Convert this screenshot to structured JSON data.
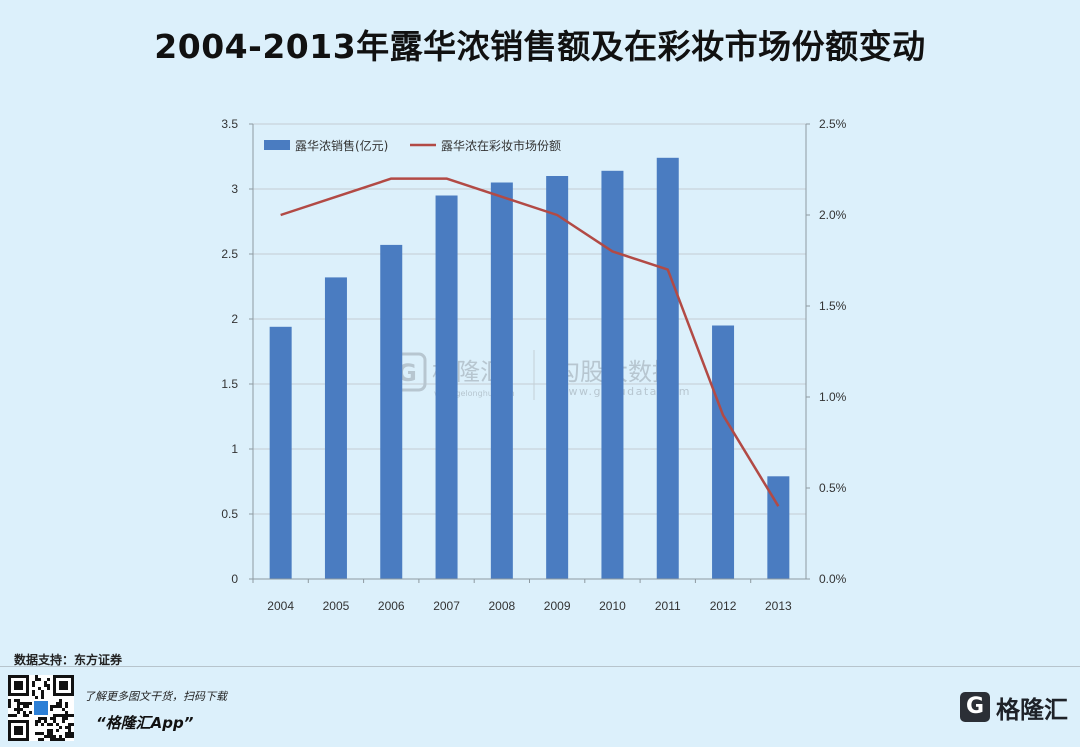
{
  "title": "2004-2013年露华浓销售额及在彩妆市场份额变动",
  "source": "数据支持：东方证券",
  "promo": {
    "line1": "了解更多图文干货，扫码下载",
    "line2": "“格隆汇App”"
  },
  "brand": {
    "logo": "G",
    "name": "格隆汇"
  },
  "watermark": {
    "left_name": "格隆汇",
    "left_url": "www.gelonghui.com",
    "right_name": "勾股大数据",
    "right_url": "www.gogudata.com"
  },
  "chart_data": {
    "type": "bar+line",
    "categories": [
      "2004",
      "2005",
      "2006",
      "2007",
      "2008",
      "2009",
      "2010",
      "2011",
      "2012",
      "2013"
    ],
    "series": [
      {
        "name": "露华浓销售(亿元)",
        "type": "bar",
        "axis": "left",
        "color": "#4a7cc1",
        "values": [
          1.94,
          2.32,
          2.57,
          2.95,
          3.05,
          3.1,
          3.14,
          3.24,
          1.95,
          0.79
        ]
      },
      {
        "name": "露华浓在彩妆市场份额",
        "type": "line",
        "axis": "right",
        "color": "#b24a45",
        "values": [
          2.0,
          2.1,
          2.2,
          2.2,
          2.1,
          2.0,
          1.8,
          1.7,
          0.9,
          0.4
        ]
      }
    ],
    "y_left": {
      "min": 0,
      "max": 3.5,
      "ticks": [
        0,
        0.5,
        1,
        1.5,
        2,
        2.5,
        3,
        3.5
      ],
      "tick_labels": [
        "0",
        "0.5",
        "1",
        "1.5",
        "2",
        "2.5",
        "3",
        "3.5"
      ]
    },
    "y_right": {
      "min": 0,
      "max": 2.5,
      "ticks": [
        0,
        0.5,
        1.0,
        1.5,
        2.0,
        2.5
      ],
      "tick_labels": [
        "0.0%",
        "0.5%",
        "1.0%",
        "1.5%",
        "2.0%",
        "2.5%"
      ]
    },
    "grid": true,
    "legend_position": "top-left"
  }
}
